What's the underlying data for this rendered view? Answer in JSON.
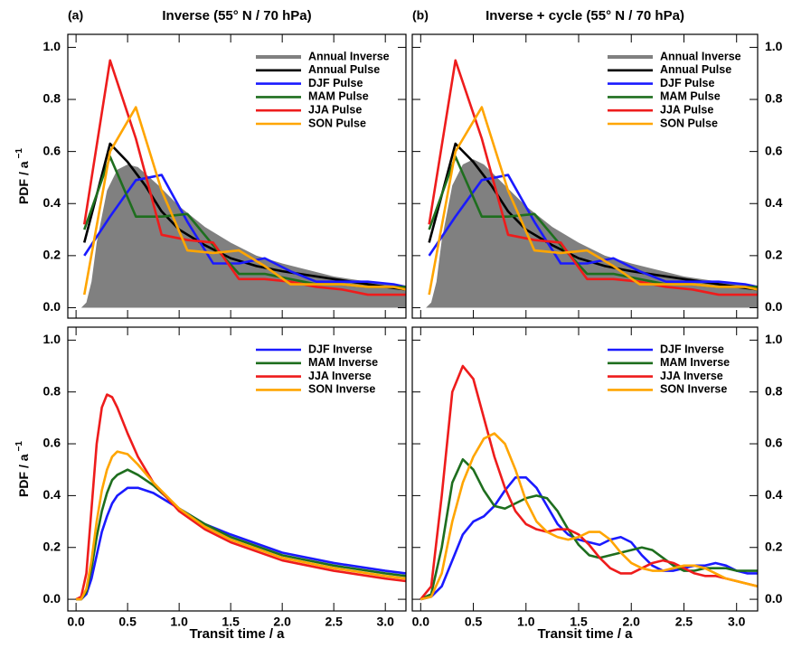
{
  "chart_data": [
    {
      "type": "line",
      "panel_label": "(a)",
      "title": "Inverse (55° N / 70 hPa)",
      "ylabel": "PDF / a",
      "ylabel_superscript": "−1",
      "xlim": [
        -0.08,
        3.2
      ],
      "ylim": [
        -0.04,
        1.05
      ],
      "xticks": [
        {
          "value": 0,
          "label": "0.0"
        },
        {
          "value": 0.5,
          "label": "0.5"
        },
        {
          "value": 1,
          "label": "1.0"
        },
        {
          "value": 1.5,
          "label": "1.5"
        },
        {
          "value": 2,
          "label": "2.0"
        },
        {
          "value": 2.5,
          "label": "2.5"
        },
        {
          "value": 3,
          "label": "3.0"
        }
      ],
      "yticks": [
        {
          "value": 0,
          "label": "0.0"
        },
        {
          "value": 0.2,
          "label": "0.2"
        },
        {
          "value": 0.4,
          "label": "0.4"
        },
        {
          "value": 0.6,
          "label": "0.6"
        },
        {
          "value": 0.8,
          "label": "0.8"
        },
        {
          "value": 1,
          "label": "1.0"
        }
      ],
      "xtick_labels": false,
      "ytick_side": "left",
      "legend": "upper right",
      "series": [
        {
          "name": "Annual Inverse",
          "color": "#808080",
          "style": "area",
          "x": [
            0,
            0.05,
            0.1,
            0.15,
            0.2,
            0.3,
            0.4,
            0.5,
            0.6,
            0.8,
            1.0,
            1.25,
            1.5,
            1.75,
            2.0,
            2.5,
            3.0,
            3.2
          ],
          "values": [
            0,
            0,
            0.02,
            0.1,
            0.25,
            0.45,
            0.53,
            0.55,
            0.54,
            0.47,
            0.39,
            0.31,
            0.25,
            0.2,
            0.17,
            0.12,
            0.09,
            0.08
          ]
        },
        {
          "name": "Annual Pulse",
          "color": "#000000",
          "x": [
            0.08,
            0.33,
            0.5,
            0.67,
            0.83,
            1.0,
            1.25,
            1.5,
            1.75,
            2.0,
            2.5,
            3.0,
            3.2
          ],
          "values": [
            0.25,
            0.63,
            0.56,
            0.47,
            0.37,
            0.3,
            0.24,
            0.19,
            0.16,
            0.14,
            0.11,
            0.08,
            0.07
          ]
        },
        {
          "name": "DJF Pulse",
          "color": "#1a1aff",
          "x": [
            0.08,
            0.33,
            0.58,
            0.83,
            1.08,
            1.33,
            1.58,
            1.83,
            2.08,
            2.33,
            2.58,
            2.83,
            3.08,
            3.2
          ],
          "values": [
            0.2,
            0.35,
            0.49,
            0.51,
            0.33,
            0.17,
            0.17,
            0.19,
            0.14,
            0.1,
            0.1,
            0.1,
            0.09,
            0.08
          ]
        },
        {
          "name": "MAM Pulse",
          "color": "#1e6e1e",
          "x": [
            0.08,
            0.33,
            0.58,
            0.83,
            1.08,
            1.33,
            1.58,
            1.83,
            2.08,
            2.33,
            2.58,
            2.83,
            3.08,
            3.2
          ],
          "values": [
            0.3,
            0.58,
            0.35,
            0.35,
            0.36,
            0.24,
            0.13,
            0.13,
            0.11,
            0.09,
            0.09,
            0.08,
            0.08,
            0.08
          ]
        },
        {
          "name": "JJA Pulse",
          "color": "#ee1c1c",
          "x": [
            0.08,
            0.33,
            0.58,
            0.83,
            1.08,
            1.33,
            1.58,
            1.83,
            2.08,
            2.33,
            2.58,
            2.83,
            3.08,
            3.2
          ],
          "values": [
            0.32,
            0.95,
            0.65,
            0.28,
            0.26,
            0.25,
            0.11,
            0.11,
            0.1,
            0.08,
            0.07,
            0.05,
            0.05,
            0.05
          ]
        },
        {
          "name": "SON Pulse",
          "color": "#ffa500",
          "x": [
            0.08,
            0.33,
            0.58,
            0.83,
            1.08,
            1.33,
            1.58,
            1.83,
            2.08,
            2.33,
            2.58,
            2.83,
            3.08,
            3.2
          ],
          "values": [
            0.05,
            0.6,
            0.77,
            0.45,
            0.22,
            0.21,
            0.22,
            0.16,
            0.09,
            0.09,
            0.09,
            0.08,
            0.08,
            0.07
          ]
        }
      ]
    },
    {
      "type": "line",
      "panel_label": "(b)",
      "title": "Inverse + cycle (55° N / 70 hPa)",
      "xlim": [
        -0.08,
        3.2
      ],
      "ylim": [
        -0.04,
        1.05
      ],
      "xticks": [
        {
          "value": 0,
          "label": "0.0"
        },
        {
          "value": 0.5,
          "label": "0.5"
        },
        {
          "value": 1,
          "label": "1.0"
        },
        {
          "value": 1.5,
          "label": "1.5"
        },
        {
          "value": 2,
          "label": "2.0"
        },
        {
          "value": 2.5,
          "label": "2.5"
        },
        {
          "value": 3,
          "label": "3.0"
        }
      ],
      "yticks": [
        {
          "value": 0,
          "label": "0.0"
        },
        {
          "value": 0.2,
          "label": "0.2"
        },
        {
          "value": 0.4,
          "label": "0.4"
        },
        {
          "value": 0.6,
          "label": "0.6"
        },
        {
          "value": 0.8,
          "label": "0.8"
        },
        {
          "value": 1,
          "label": "1.0"
        }
      ],
      "xtick_labels": false,
      "ytick_side": "right",
      "legend": "upper right",
      "series": [
        {
          "name": "Annual Inverse",
          "color": "#808080",
          "style": "area",
          "x": [
            0,
            0.05,
            0.1,
            0.15,
            0.2,
            0.3,
            0.4,
            0.5,
            0.6,
            0.8,
            1.0,
            1.25,
            1.5,
            1.75,
            2.0,
            2.5,
            3.0,
            3.2
          ],
          "values": [
            0,
            0,
            0.02,
            0.1,
            0.26,
            0.47,
            0.55,
            0.57,
            0.55,
            0.47,
            0.39,
            0.31,
            0.25,
            0.2,
            0.17,
            0.12,
            0.09,
            0.08
          ]
        },
        {
          "name": "Annual Pulse",
          "color": "#000000",
          "x": [
            0.08,
            0.33,
            0.5,
            0.67,
            0.83,
            1.0,
            1.25,
            1.5,
            1.75,
            2.0,
            2.5,
            3.0,
            3.2
          ],
          "values": [
            0.25,
            0.63,
            0.56,
            0.47,
            0.37,
            0.3,
            0.24,
            0.19,
            0.16,
            0.14,
            0.11,
            0.08,
            0.07
          ]
        },
        {
          "name": "DJF Pulse",
          "color": "#1a1aff",
          "x": [
            0.08,
            0.33,
            0.58,
            0.83,
            1.08,
            1.33,
            1.58,
            1.83,
            2.08,
            2.33,
            2.58,
            2.83,
            3.08,
            3.2
          ],
          "values": [
            0.2,
            0.35,
            0.49,
            0.51,
            0.33,
            0.17,
            0.17,
            0.19,
            0.14,
            0.1,
            0.1,
            0.1,
            0.09,
            0.08
          ]
        },
        {
          "name": "MAM Pulse",
          "color": "#1e6e1e",
          "x": [
            0.08,
            0.33,
            0.58,
            0.83,
            1.08,
            1.33,
            1.58,
            1.83,
            2.08,
            2.33,
            2.58,
            2.83,
            3.08,
            3.2
          ],
          "values": [
            0.3,
            0.58,
            0.35,
            0.35,
            0.36,
            0.24,
            0.13,
            0.13,
            0.11,
            0.09,
            0.09,
            0.08,
            0.08,
            0.08
          ]
        },
        {
          "name": "JJA Pulse",
          "color": "#ee1c1c",
          "x": [
            0.08,
            0.33,
            0.58,
            0.83,
            1.08,
            1.33,
            1.58,
            1.83,
            2.08,
            2.33,
            2.58,
            2.83,
            3.08,
            3.2
          ],
          "values": [
            0.32,
            0.95,
            0.65,
            0.28,
            0.26,
            0.25,
            0.11,
            0.11,
            0.1,
            0.08,
            0.07,
            0.05,
            0.05,
            0.05
          ]
        },
        {
          "name": "SON Pulse",
          "color": "#ffa500",
          "x": [
            0.08,
            0.33,
            0.58,
            0.83,
            1.08,
            1.33,
            1.58,
            1.83,
            2.08,
            2.33,
            2.58,
            2.83,
            3.08,
            3.2
          ],
          "values": [
            0.05,
            0.6,
            0.77,
            0.45,
            0.22,
            0.21,
            0.22,
            0.16,
            0.09,
            0.09,
            0.09,
            0.08,
            0.08,
            0.07
          ]
        }
      ]
    },
    {
      "type": "line",
      "ylabel": "PDF / a",
      "ylabel_superscript": "−1",
      "xlabel": "Transit time / a",
      "xlim": [
        -0.08,
        3.2
      ],
      "ylim": [
        -0.045,
        1.05
      ],
      "xticks": [
        {
          "value": 0,
          "label": "0.0"
        },
        {
          "value": 0.5,
          "label": "0.5"
        },
        {
          "value": 1,
          "label": "1.0"
        },
        {
          "value": 1.5,
          "label": "1.5"
        },
        {
          "value": 2,
          "label": "2.0"
        },
        {
          "value": 2.5,
          "label": "2.5"
        },
        {
          "value": 3,
          "label": "3.0"
        }
      ],
      "yticks": [
        {
          "value": 0,
          "label": "0.0"
        },
        {
          "value": 0.2,
          "label": "0.2"
        },
        {
          "value": 0.4,
          "label": "0.4"
        },
        {
          "value": 0.6,
          "label": "0.6"
        },
        {
          "value": 0.8,
          "label": "0.8"
        },
        {
          "value": 1,
          "label": "1.0"
        }
      ],
      "xtick_labels": true,
      "ytick_side": "left",
      "legend": "upper right",
      "x": [
        0,
        0.05,
        0.1,
        0.15,
        0.2,
        0.25,
        0.3,
        0.35,
        0.4,
        0.5,
        0.6,
        0.75,
        1.0,
        1.25,
        1.5,
        2.0,
        2.5,
        3.0,
        3.2
      ],
      "series": [
        {
          "name": "DJF Inverse",
          "color": "#1a1aff",
          "values": [
            0,
            0,
            0.02,
            0.08,
            0.17,
            0.26,
            0.32,
            0.37,
            0.4,
            0.43,
            0.43,
            0.41,
            0.35,
            0.29,
            0.25,
            0.18,
            0.14,
            0.11,
            0.1
          ]
        },
        {
          "name": "MAM Inverse",
          "color": "#1e6e1e",
          "values": [
            0,
            0,
            0.03,
            0.12,
            0.24,
            0.34,
            0.41,
            0.46,
            0.48,
            0.5,
            0.48,
            0.44,
            0.35,
            0.29,
            0.24,
            0.17,
            0.13,
            0.1,
            0.09
          ]
        },
        {
          "name": "JJA Inverse",
          "color": "#ee1c1c",
          "values": [
            0,
            0.01,
            0.1,
            0.35,
            0.6,
            0.74,
            0.79,
            0.78,
            0.74,
            0.64,
            0.55,
            0.45,
            0.34,
            0.27,
            0.22,
            0.15,
            0.11,
            0.08,
            0.07
          ]
        },
        {
          "name": "SON Inverse",
          "color": "#ffa500",
          "values": [
            0,
            0,
            0.04,
            0.15,
            0.3,
            0.42,
            0.5,
            0.55,
            0.57,
            0.56,
            0.52,
            0.45,
            0.35,
            0.28,
            0.23,
            0.16,
            0.12,
            0.09,
            0.08
          ]
        }
      ]
    },
    {
      "type": "line",
      "xlabel": "Transit time / a",
      "xlim": [
        -0.08,
        3.2
      ],
      "ylim": [
        -0.045,
        1.05
      ],
      "xticks": [
        {
          "value": 0,
          "label": "0.0"
        },
        {
          "value": 0.5,
          "label": "0.5"
        },
        {
          "value": 1,
          "label": "1.0"
        },
        {
          "value": 1.5,
          "label": "1.5"
        },
        {
          "value": 2,
          "label": "2.0"
        },
        {
          "value": 2.5,
          "label": "2.5"
        },
        {
          "value": 3,
          "label": "3.0"
        }
      ],
      "yticks": [
        {
          "value": 0,
          "label": "0.0"
        },
        {
          "value": 0.2,
          "label": "0.2"
        },
        {
          "value": 0.4,
          "label": "0.4"
        },
        {
          "value": 0.6,
          "label": "0.6"
        },
        {
          "value": 0.8,
          "label": "0.8"
        },
        {
          "value": 1,
          "label": "1.0"
        }
      ],
      "xtick_labels": true,
      "ytick_side": "right",
      "legend": "upper right",
      "x": [
        0,
        0.1,
        0.2,
        0.3,
        0.4,
        0.5,
        0.6,
        0.7,
        0.8,
        0.9,
        1.0,
        1.1,
        1.2,
        1.3,
        1.4,
        1.5,
        1.6,
        1.7,
        1.8,
        1.9,
        2.0,
        2.1,
        2.2,
        2.3,
        2.4,
        2.5,
        2.6,
        2.7,
        2.8,
        2.9,
        3.0,
        3.1,
        3.2
      ],
      "series": [
        {
          "name": "DJF Inverse",
          "color": "#1a1aff",
          "values": [
            0,
            0.01,
            0.05,
            0.15,
            0.25,
            0.3,
            0.32,
            0.36,
            0.42,
            0.47,
            0.47,
            0.43,
            0.36,
            0.29,
            0.25,
            0.23,
            0.22,
            0.21,
            0.23,
            0.24,
            0.22,
            0.17,
            0.13,
            0.11,
            0.11,
            0.12,
            0.13,
            0.13,
            0.14,
            0.13,
            0.11,
            0.1,
            0.1
          ]
        },
        {
          "name": "MAM Inverse",
          "color": "#1e6e1e",
          "values": [
            0,
            0.02,
            0.2,
            0.45,
            0.54,
            0.5,
            0.42,
            0.36,
            0.35,
            0.37,
            0.39,
            0.4,
            0.39,
            0.34,
            0.27,
            0.21,
            0.17,
            0.16,
            0.17,
            0.18,
            0.19,
            0.2,
            0.19,
            0.16,
            0.13,
            0.11,
            0.11,
            0.12,
            0.12,
            0.12,
            0.11,
            0.11,
            0.11
          ]
        },
        {
          "name": "JJA Inverse",
          "color": "#ee1c1c",
          "values": [
            0,
            0.05,
            0.4,
            0.8,
            0.9,
            0.85,
            0.7,
            0.55,
            0.43,
            0.34,
            0.29,
            0.27,
            0.26,
            0.27,
            0.27,
            0.25,
            0.21,
            0.16,
            0.12,
            0.1,
            0.1,
            0.12,
            0.14,
            0.15,
            0.14,
            0.12,
            0.1,
            0.09,
            0.09,
            0.08,
            0.07,
            0.06,
            0.05
          ]
        },
        {
          "name": "SON Inverse",
          "color": "#ffa500",
          "values": [
            0,
            0.01,
            0.1,
            0.3,
            0.45,
            0.55,
            0.62,
            0.64,
            0.6,
            0.5,
            0.38,
            0.3,
            0.26,
            0.24,
            0.23,
            0.24,
            0.26,
            0.26,
            0.23,
            0.18,
            0.14,
            0.12,
            0.11,
            0.11,
            0.12,
            0.13,
            0.13,
            0.12,
            0.1,
            0.08,
            0.07,
            0.06,
            0.05
          ]
        }
      ]
    }
  ]
}
